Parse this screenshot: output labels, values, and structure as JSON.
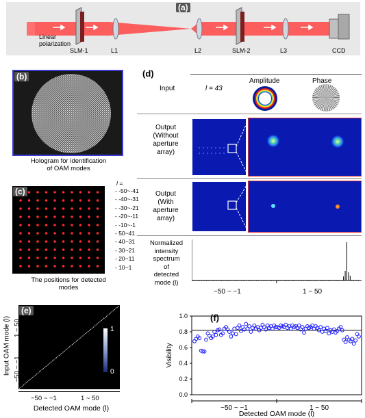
{
  "panel_a": {
    "label": "(a)",
    "linear_polarization": [
      "Linear",
      "polarization"
    ],
    "components": [
      "SLM-1",
      "L1",
      "L2",
      "SLM-2",
      "L3",
      "CCD"
    ]
  },
  "panel_b": {
    "label": "(b)",
    "caption": [
      "Hologram for identification",
      "of OAM modes"
    ]
  },
  "panel_c": {
    "label": "(c)",
    "l_header": "l =",
    "rows": [
      "-50~-41",
      "-40~-31",
      "-30~-21",
      "-20~-11",
      "-10~-1",
      "50~41",
      "40~31",
      "30~21",
      "20~11",
      "10~1"
    ],
    "caption": [
      "The positions for detected",
      "modes"
    ],
    "dot_color": "#ff2a2a"
  },
  "panel_d": {
    "label": "(d)",
    "input_label": "Input",
    "l_value": "l = 43",
    "amplitude_label": "Amplitude",
    "phase_label": "Phase",
    "output_without": [
      "Output",
      "(Without",
      "aperture",
      "array)"
    ],
    "output_with": [
      "Output",
      "(With",
      "aperture",
      "array)"
    ],
    "spectrum_label": [
      "Normalized",
      "intensity",
      "spectrum",
      "of",
      "detected",
      "mode (l)"
    ],
    "x_groups": [
      "−50 ~ −1",
      "1 ~ 50"
    ]
  },
  "panel_e": {
    "label": "(e)",
    "ylabel": "Input OAM mode (l)",
    "xlabel": "Detected OAM mode (l)",
    "x_groups": [
      "−50 ~ −1",
      "1 ~ 50"
    ],
    "y_groups": [
      "1 ~ 50",
      "−50 ~ −1"
    ],
    "colorbar_max": "1",
    "colorbar_min": "0"
  },
  "chart_data": {
    "type": "scatter",
    "panel_label": "(f)",
    "ylabel": "Visibility",
    "xlabel": "Detected OAM mode (l)",
    "x_groups": [
      "−50 ~ −1",
      "1 ~ 50"
    ],
    "yticks": [
      "0.0",
      "0.2",
      "0.4",
      "0.6",
      "0.8",
      "1.0"
    ],
    "ylim": [
      0,
      1
    ],
    "reference_line": 0.82,
    "color": "#1a1aff",
    "x": [
      -50,
      -49,
      -48,
      -47,
      -46,
      -45,
      -44,
      -43,
      -42,
      -41,
      -40,
      -39,
      -38,
      -37,
      -36,
      -35,
      -34,
      -33,
      -32,
      -31,
      -30,
      -29,
      -28,
      -27,
      -26,
      -25,
      -24,
      -23,
      -22,
      -21,
      -20,
      -19,
      -18,
      -17,
      -16,
      -15,
      -14,
      -13,
      -12,
      -11,
      -10,
      -9,
      -8,
      -7,
      -6,
      -5,
      -4,
      -3,
      -2,
      -1,
      1,
      2,
      3,
      4,
      5,
      6,
      7,
      8,
      9,
      10,
      11,
      12,
      13,
      14,
      15,
      16,
      17,
      18,
      19,
      20,
      21,
      22,
      23,
      24,
      25,
      26,
      27,
      28,
      29,
      30,
      31,
      32,
      33,
      34,
      35,
      36,
      37,
      38,
      39,
      40,
      41,
      42,
      43,
      44,
      45,
      46,
      47,
      48,
      49,
      50
    ],
    "y": [
      0.68,
      0.71,
      0.74,
      0.72,
      0.56,
      0.55,
      0.55,
      0.7,
      0.78,
      0.75,
      0.72,
      0.74,
      0.8,
      0.76,
      0.82,
      0.83,
      0.76,
      0.78,
      0.84,
      0.86,
      0.83,
      0.8,
      0.74,
      0.78,
      0.84,
      0.77,
      0.85,
      0.88,
      0.81,
      0.86,
      0.83,
      0.9,
      0.84,
      0.87,
      0.8,
      0.85,
      0.88,
      0.84,
      0.86,
      0.82,
      0.85,
      0.89,
      0.86,
      0.83,
      0.88,
      0.85,
      0.87,
      0.84,
      0.88,
      0.86,
      0.86,
      0.85,
      0.88,
      0.87,
      0.86,
      0.89,
      0.85,
      0.87,
      0.84,
      0.88,
      0.86,
      0.87,
      0.85,
      0.88,
      0.83,
      0.86,
      0.79,
      0.84,
      0.87,
      0.85,
      0.86,
      0.88,
      0.84,
      0.87,
      0.85,
      0.82,
      0.86,
      0.8,
      0.84,
      0.81,
      0.85,
      0.78,
      0.82,
      0.8,
      0.83,
      0.79,
      0.81,
      0.84,
      0.86,
      0.82,
      0.7,
      0.67,
      0.73,
      0.7,
      0.68,
      0.71,
      0.65,
      0.69,
      0.77,
      0.74
    ]
  }
}
